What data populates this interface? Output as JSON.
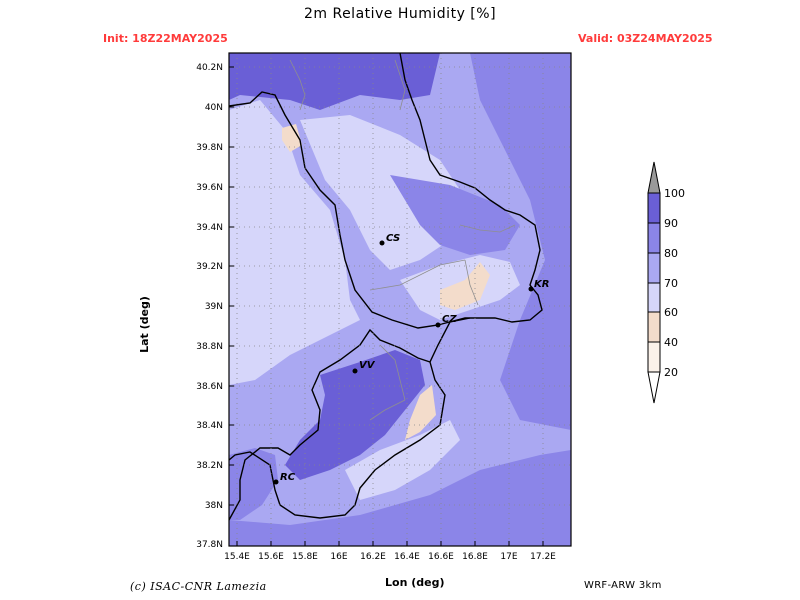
{
  "header": {
    "title": "2m Relative Humidity [%]",
    "init": "Init: 18Z22MAY2025",
    "valid": "Valid: 03Z24MAY2025"
  },
  "axes": {
    "xlabel": "Lon (deg)",
    "ylabel": "Lat (deg)",
    "lon_ticks": [
      "15.4E",
      "15.6E",
      "15.8E",
      "16E",
      "16.2E",
      "16.4E",
      "16.6E",
      "16.8E",
      "17E",
      "17.2E"
    ],
    "lat_ticks": [
      "40.2N",
      "40N",
      "39.8N",
      "39.6N",
      "39.4N",
      "39.2N",
      "39N",
      "38.8N",
      "38.6N",
      "38.4N",
      "38.2N",
      "38N",
      "37.8N"
    ]
  },
  "legend": {
    "levels": [
      "100",
      "90",
      "80",
      "70",
      "60",
      "40",
      "20"
    ],
    "colors": {
      "gt90": "#6a5fd6",
      "80_90": "#8b85e8",
      "70_80": "#aaa8f2",
      "60_70": "#d6d6fa",
      "40_60": "#f3dccb",
      "20_40": "#fbf2ea",
      "lt20": "#ffffff",
      "over": "#999999"
    }
  },
  "cities": [
    {
      "label": "CS"
    },
    {
      "label": "KR"
    },
    {
      "label": "CZ"
    },
    {
      "label": "VV"
    },
    {
      "label": "RC"
    }
  ],
  "footer": {
    "credit": "(c) ISAC-CNR Lamezia",
    "model": "WRF-ARW 3km"
  }
}
